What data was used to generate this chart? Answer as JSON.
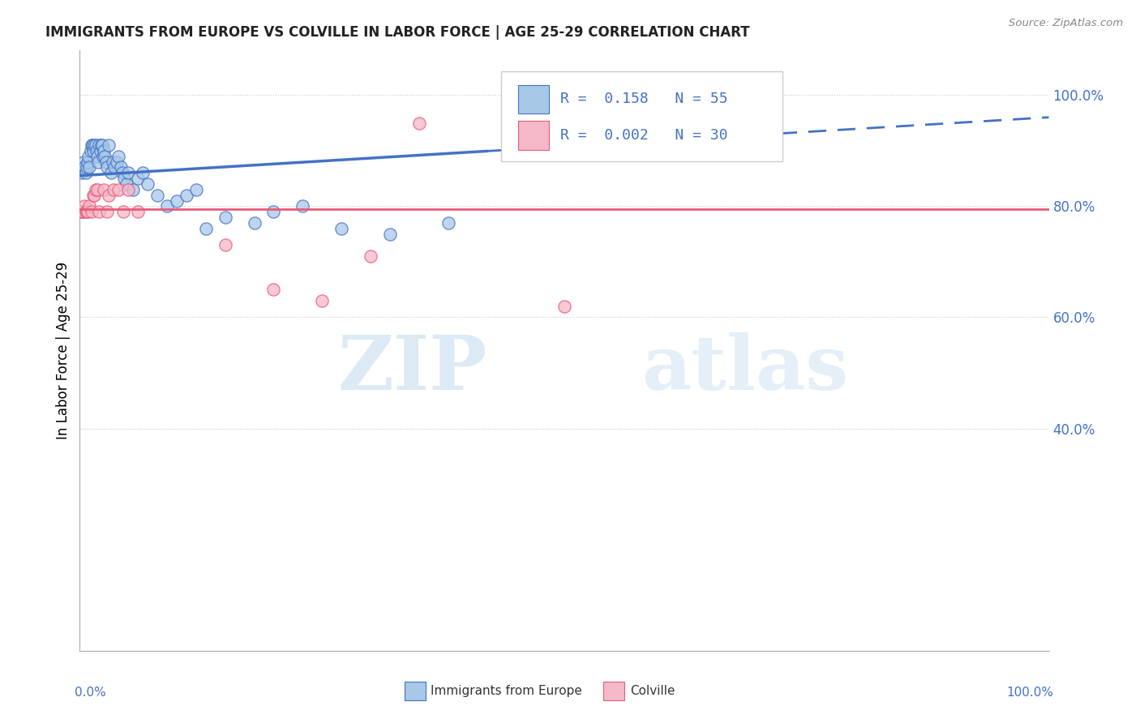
{
  "title": "IMMIGRANTS FROM EUROPE VS COLVILLE IN LABOR FORCE | AGE 25-29 CORRELATION CHART",
  "source": "Source: ZipAtlas.com",
  "ylabel": "In Labor Force | Age 25-29",
  "blue_R": "0.158",
  "blue_N": "55",
  "pink_R": "0.002",
  "pink_N": "30",
  "blue_color": "#a8c8e8",
  "pink_color": "#f4b8c8",
  "blue_line_color": "#4472C4",
  "pink_line_color": "#E85C7A",
  "blue_scatter_x": [
    0.002,
    0.003,
    0.004,
    0.005,
    0.006,
    0.007,
    0.008,
    0.009,
    0.01,
    0.011,
    0.012,
    0.013,
    0.014,
    0.015,
    0.016,
    0.017,
    0.018,
    0.019,
    0.02,
    0.021,
    0.022,
    0.023,
    0.024,
    0.025,
    0.026,
    0.027,
    0.028,
    0.03,
    0.032,
    0.034,
    0.036,
    0.038,
    0.04,
    0.042,
    0.044,
    0.046,
    0.048,
    0.05,
    0.055,
    0.06,
    0.065,
    0.07,
    0.08,
    0.09,
    0.1,
    0.11,
    0.12,
    0.13,
    0.15,
    0.18,
    0.2,
    0.23,
    0.27,
    0.32,
    0.38
  ],
  "blue_scatter_y": [
    0.86,
    0.87,
    0.88,
    0.87,
    0.86,
    0.87,
    0.88,
    0.89,
    0.87,
    0.9,
    0.91,
    0.91,
    0.9,
    0.91,
    0.91,
    0.9,
    0.89,
    0.88,
    0.91,
    0.9,
    0.91,
    0.91,
    0.89,
    0.9,
    0.89,
    0.88,
    0.87,
    0.91,
    0.86,
    0.88,
    0.87,
    0.88,
    0.89,
    0.87,
    0.86,
    0.85,
    0.84,
    0.86,
    0.83,
    0.85,
    0.86,
    0.84,
    0.82,
    0.8,
    0.81,
    0.82,
    0.83,
    0.76,
    0.78,
    0.77,
    0.79,
    0.8,
    0.76,
    0.75,
    0.77
  ],
  "pink_scatter_x": [
    0.001,
    0.002,
    0.003,
    0.005,
    0.006,
    0.007,
    0.008,
    0.01,
    0.012,
    0.014,
    0.015,
    0.016,
    0.018,
    0.02,
    0.025,
    0.028,
    0.03,
    0.035,
    0.04,
    0.045,
    0.05,
    0.06,
    0.15,
    0.2,
    0.25,
    0.3,
    0.35,
    0.5,
    0.6,
    0.65
  ],
  "pink_scatter_y": [
    0.79,
    0.79,
    0.79,
    0.8,
    0.79,
    0.79,
    0.79,
    0.8,
    0.79,
    0.82,
    0.82,
    0.83,
    0.83,
    0.79,
    0.83,
    0.79,
    0.82,
    0.83,
    0.83,
    0.79,
    0.83,
    0.79,
    0.73,
    0.65,
    0.63,
    0.71,
    0.95,
    0.62,
    0.96,
    0.96
  ],
  "blue_trendline_x0": 0.0,
  "blue_trendline_y0": 0.855,
  "blue_trendline_x_solid_end": 0.42,
  "blue_trendline_x_dash_end": 1.0,
  "blue_trendline_y1": 0.96,
  "pink_trendline_y": 0.795,
  "watermark_zip": "ZIP",
  "watermark_atlas": "atlas",
  "xlim": [
    0.0,
    1.0
  ],
  "ylim": [
    0.0,
    1.08
  ],
  "yticks": [
    0.4,
    0.6,
    0.8,
    1.0
  ],
  "legend_blue_text": "R =  0.158   N = 55",
  "legend_pink_text": "R =  0.002   N = 30",
  "bottom_left_label": "0.0%",
  "bottom_right_label": "100.0%",
  "bottom_blue_label": "Immigrants from Europe",
  "bottom_pink_label": "Colville"
}
